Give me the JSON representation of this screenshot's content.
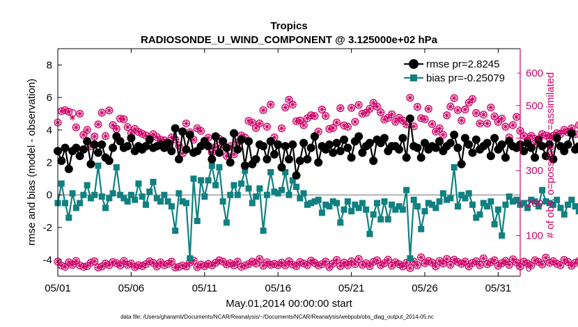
{
  "chart_data": {
    "type": "line",
    "title": "Tropics",
    "subtitle": "RADIOSONDE_U_WIND_COMPONENT @ 3.125000e+02 hPa",
    "xlabel": "May.01,2014 00:00:00 start",
    "ylabel_left": "rmse and bias (model - observation)",
    "ylabel_right": "# of obs: o=possible; ∗=assimilated",
    "footnote": "data file: /Users/gharamti/Documents/NCAR/Reanalysis/~/Documents/NCAR/Reanalysis/webpub/obs_diag_output_2014-05.nc",
    "x_range": [
      0,
      31.5
    ],
    "y_left_range": [
      -5,
      9
    ],
    "y_right_range": [
      -25,
      675
    ],
    "x_ticks": [
      {
        "value": 0,
        "label": "05/01"
      },
      {
        "value": 5,
        "label": "05/06"
      },
      {
        "value": 10,
        "label": "05/11"
      },
      {
        "value": 15,
        "label": "05/16"
      },
      {
        "value": 20,
        "label": "05/21"
      },
      {
        "value": 25,
        "label": "05/26"
      },
      {
        "value": 30,
        "label": "05/31"
      }
    ],
    "y_left_ticks": [
      -4,
      -2,
      0,
      2,
      4,
      6,
      8
    ],
    "y_right_ticks": [
      0,
      100,
      200,
      300,
      400,
      500,
      600
    ],
    "zero_line": 0,
    "colors": {
      "rmse": "#000000",
      "bias": "#118080",
      "obs": "#cc0066",
      "zero": "#b3b3b3",
      "right_axis": "#cc0066"
    },
    "legend": [
      {
        "name": "rmse pr=2.8245",
        "series": "rmse"
      },
      {
        "name": "bias pr=-0.25079",
        "series": "bias"
      }
    ],
    "x_start": 0,
    "x_step": 0.25,
    "series": [
      {
        "name": "rmse",
        "axis": "left",
        "values": [
          2.7,
          2.1,
          2.9,
          1.6,
          2.7,
          2.9,
          2.4,
          2.8,
          3.3,
          1.9,
          3.1,
          2.6,
          3.1,
          2.3,
          2.1,
          2.9,
          3.6,
          3.3,
          2.9,
          3.0,
          3.5,
          2.7,
          3.0,
          2.8,
          3.0,
          3.4,
          2.9,
          3.0,
          3.1,
          2.9,
          3.2,
          2.7,
          4.1,
          2.2,
          3.9,
          2.8,
          3.7,
          2.6,
          2.7,
          3.0,
          3.3,
          3.0,
          2.2,
          3.6,
          2.6,
          3.3,
          2.9,
          2.0,
          3.8,
          2.8,
          3.4,
          1.8,
          3.3,
          1.9,
          2.2,
          3.1,
          3.0,
          2.2,
          3.3,
          2.5,
          3.1,
          1.7,
          3.0,
          2.2,
          3.1,
          1.2,
          2.1,
          3.2,
          2.2,
          2.9,
          3.6,
          2.0,
          3.0,
          2.8,
          3.1,
          2.6,
          3.2,
          2.7,
          3.4,
          2.9,
          2.3,
          3.3,
          3.6,
          2.6,
          3.0,
          3.2,
          2.1,
          3.4,
          3.2,
          3.5,
          2.7,
          3.0,
          3.0,
          2.8,
          3.5,
          2.3,
          4.7,
          3.0,
          2.9,
          2.3,
          3.2,
          2.8,
          3.0,
          2.9,
          3.3,
          2.7,
          3.0,
          3.2,
          3.7,
          2.9,
          1.9,
          3.5,
          3.1,
          2.6,
          3.4,
          2.8,
          3.0,
          3.2,
          2.4,
          3.5,
          2.8,
          3.1,
          2.3,
          3.3,
          3.0,
          2.9,
          3.1,
          2.7,
          3.2,
          2.9,
          2.3,
          3.4,
          3.0,
          2.4,
          3.1,
          2.2,
          3.5,
          3.0,
          2.7,
          3.1,
          3.8,
          2.8,
          3.0,
          2.7,
          3.2,
          3.0,
          2.9,
          3.3,
          4.2,
          2.2,
          3.1,
          2.6,
          3.1,
          2.8,
          3.0,
          1.6,
          3.2,
          2.9,
          3.1,
          2.6,
          3.4
        ]
      },
      {
        "name": "bias",
        "axis": "left",
        "values": [
          -0.5,
          0.7,
          -0.5,
          -1.4,
          0.1,
          -0.8,
          -0.5,
          0.0,
          0.6,
          -0.2,
          0.0,
          1.8,
          -0.1,
          -0.8,
          -0.2,
          0.1,
          1.7,
          0.0,
          -0.2,
          -0.4,
          0.0,
          -0.3,
          0.7,
          -0.1,
          -0.6,
          0.2,
          0.8,
          -0.2,
          -0.4,
          0.0,
          -0.4,
          -0.7,
          -2.2,
          0.1,
          -0.4,
          -0.5,
          -3.9,
          1.0,
          -1.6,
          0.9,
          -0.1,
          0.9,
          1.8,
          0.6,
          1.7,
          -0.4,
          -1.7,
          0.0,
          0.6,
          0.0,
          0.7,
          1.5,
          0.4,
          -0.5,
          -0.1,
          0.4,
          -2.2,
          0.0,
          1.4,
          0.2,
          0.1,
          0.3,
          1.4,
          0.0,
          0.9,
          0.5,
          -0.2,
          0.1,
          -0.6,
          -0.5,
          -0.4,
          -0.3,
          -1.1,
          -0.6,
          -0.7,
          -0.4,
          -0.5,
          -1.7,
          -0.9,
          -0.4,
          -1.0,
          -0.6,
          -0.8,
          -0.5,
          -0.9,
          -2.4,
          -1.2,
          -0.5,
          -1.5,
          -0.4,
          -1.5,
          -0.6,
          -0.9,
          -0.7,
          -0.9,
          0.3,
          -3.9,
          -0.3,
          -0.7,
          -2.1,
          -1.0,
          -0.5,
          -0.6,
          -0.8,
          -0.4,
          0.1,
          -0.3,
          -0.2,
          1.7,
          -0.7,
          0.0,
          -0.2,
          0.1,
          -0.6,
          -1.4,
          -1.2,
          -0.5,
          -0.7,
          -0.4,
          -1.8,
          -0.9,
          -2.5,
          -0.6,
          -0.1,
          -0.4,
          -0.3,
          -0.6,
          -0.5,
          -0.8,
          -0.3,
          -0.4,
          -0.7,
          0.3,
          -0.4,
          -0.5,
          -0.6,
          -0.3,
          -0.8,
          -1.2,
          -0.6,
          -0.3,
          -0.7,
          -1.0,
          -0.6,
          -0.4,
          0.0,
          -0.9,
          -0.5,
          -0.6,
          -0.2,
          0.0,
          -0.3,
          -0.6,
          -0.4,
          0.0,
          -0.3,
          -0.5,
          -2.7,
          -0.5
        ]
      },
      {
        "name": "obs possible (upper)",
        "axis": "right",
        "values": [
          448,
          483,
          486,
          481,
          477,
          433,
          475,
          410,
          425,
          375,
          405,
          442,
          478,
          406,
          485,
          440,
          428,
          460,
          458,
          434,
          415,
          428,
          419,
          413,
          408,
          399,
          412,
          403,
          395,
          393,
          374,
          402,
          396,
          377,
          353,
          445,
          418,
          395,
          430,
          422,
          392,
          401,
          356,
          372,
          398,
          380,
          345,
          375,
          350,
          386,
          408,
          402,
          453,
          448,
          431,
          445,
          486,
          435,
          503,
          402,
          378,
          430,
          494,
          518,
          503,
          452,
          454,
          440,
          461,
          470,
          468,
          420,
          488,
          468,
          428,
          431,
          448,
          492,
          439,
          435,
          493,
          450,
          502,
          475,
          478,
          490,
          508,
          497,
          479,
          457,
          462,
          473,
          450,
          462,
          454,
          442,
          524,
          436,
          496,
          461,
          458,
          490,
          443,
          420,
          430,
          410,
          470,
          497,
          523,
          486,
          454,
          488,
          509,
          520,
          477,
          445,
          472,
          445,
          494,
          467,
          450,
          460,
          435,
          402,
          440,
          465,
          422,
          407,
          392,
          407,
          382,
          395,
          412,
          408,
          400,
          407,
          415,
          413,
          425,
          418,
          430,
          412,
          440,
          435,
          420,
          392,
          442,
          470,
          388,
          387,
          461,
          410,
          415,
          389,
          460,
          470,
          432,
          411,
          392,
          435,
          467
        ]
      },
      {
        "name": "obs assimilated (upper)",
        "axis": "right",
        "values": [
          448,
          483,
          486,
          481,
          463,
          433,
          475,
          410,
          425,
          375,
          405,
          442,
          478,
          406,
          485,
          440,
          428,
          460,
          458,
          434,
          415,
          428,
          419,
          413,
          408,
          399,
          412,
          403,
          395,
          393,
          374,
          402,
          396,
          377,
          353,
          445,
          418,
          395,
          430,
          422,
          392,
          401,
          356,
          372,
          398,
          380,
          345,
          375,
          350,
          386,
          408,
          402,
          453,
          448,
          431,
          445,
          486,
          435,
          503,
          402,
          378,
          430,
          494,
          518,
          503,
          452,
          454,
          440,
          461,
          470,
          468,
          420,
          488,
          468,
          428,
          431,
          448,
          492,
          439,
          435,
          493,
          450,
          502,
          475,
          478,
          490,
          508,
          497,
          479,
          457,
          462,
          473,
          450,
          462,
          454,
          442,
          524,
          436,
          496,
          461,
          458,
          490,
          443,
          420,
          430,
          410,
          470,
          497,
          523,
          486,
          454,
          488,
          509,
          520,
          477,
          445,
          472,
          445,
          494,
          467,
          450,
          460,
          435,
          402,
          440,
          465,
          422,
          407,
          392,
          407,
          382,
          395,
          412,
          408,
          400,
          407,
          415,
          413,
          425,
          418,
          430,
          412,
          440,
          435,
          420,
          392,
          442,
          470,
          388,
          387,
          461,
          410,
          415,
          389,
          460,
          470,
          432,
          411,
          392,
          435,
          467
        ]
      },
      {
        "name": "obs possible (lower)",
        "axis": "right",
        "values": [
          20,
          8,
          4,
          18,
          10,
          22,
          8,
          4,
          6,
          17,
          21,
          2,
          5,
          14,
          9,
          19,
          15,
          8,
          22,
          10,
          14,
          3,
          9,
          6,
          12,
          21,
          16,
          5,
          18,
          9,
          13,
          20,
          2,
          4,
          8,
          5,
          17,
          23,
          3,
          11,
          6,
          13,
          8,
          16,
          24,
          20,
          11,
          15,
          8,
          20,
          4,
          8,
          12,
          20,
          14,
          28,
          7,
          18,
          10,
          13,
          9,
          17,
          8,
          21,
          11,
          6,
          19,
          14,
          9,
          23,
          16,
          8,
          12,
          20,
          3,
          14,
          25,
          6,
          17,
          9,
          21,
          12,
          28,
          10,
          15,
          6,
          19,
          24,
          9,
          15,
          26,
          7,
          18,
          12,
          5,
          16,
          0,
          20,
          9,
          33,
          15,
          22,
          17,
          5,
          22,
          14,
          28,
          10,
          26,
          19,
          13,
          20,
          5,
          16,
          21,
          9,
          30,
          12,
          18,
          24,
          7,
          15,
          22,
          10,
          27,
          17,
          5,
          20,
          14,
          8,
          24,
          19,
          11,
          32,
          16,
          21,
          13,
          9,
          25,
          19,
          7,
          16,
          22,
          28,
          11,
          17,
          6,
          24,
          19,
          12,
          23,
          9,
          17,
          28,
          13,
          6,
          19,
          10,
          23,
          4,
          0
        ]
      },
      {
        "name": "obs assimilated (lower)",
        "axis": "right",
        "values": [
          20,
          8,
          4,
          18,
          10,
          22,
          8,
          4,
          6,
          17,
          21,
          2,
          5,
          14,
          9,
          19,
          15,
          8,
          22,
          10,
          14,
          3,
          9,
          6,
          12,
          21,
          16,
          5,
          18,
          9,
          13,
          20,
          2,
          4,
          8,
          5,
          17,
          23,
          3,
          11,
          6,
          13,
          8,
          16,
          24,
          20,
          11,
          15,
          8,
          20,
          4,
          8,
          12,
          20,
          14,
          28,
          7,
          18,
          10,
          13,
          9,
          17,
          8,
          21,
          11,
          6,
          19,
          14,
          9,
          23,
          16,
          8,
          12,
          20,
          3,
          14,
          25,
          6,
          17,
          9,
          21,
          12,
          28,
          10,
          15,
          6,
          19,
          24,
          9,
          15,
          26,
          7,
          18,
          12,
          5,
          16,
          0,
          20,
          9,
          33,
          15,
          22,
          17,
          5,
          22,
          14,
          28,
          10,
          26,
          19,
          13,
          20,
          5,
          16,
          21,
          9,
          30,
          12,
          18,
          24,
          7,
          15,
          22,
          10,
          27,
          17,
          5,
          20,
          14,
          8,
          24,
          19,
          11,
          32,
          16,
          21,
          13,
          9,
          25,
          19,
          7,
          16,
          22,
          28,
          11,
          17,
          6,
          24,
          19,
          12,
          23,
          9,
          17,
          28,
          13,
          6,
          19,
          10,
          23,
          4,
          0
        ]
      }
    ]
  }
}
